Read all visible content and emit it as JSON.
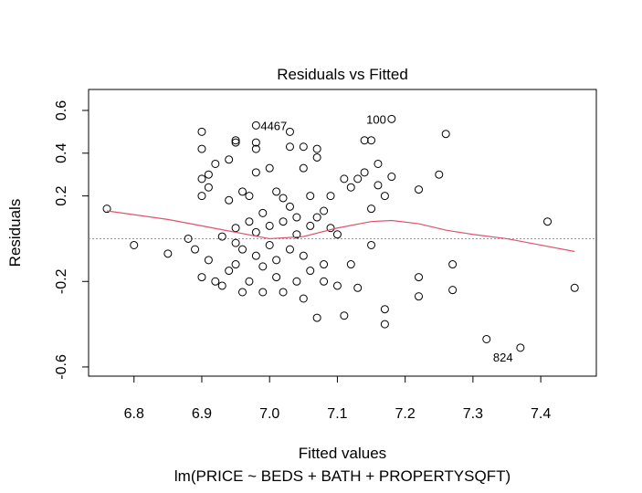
{
  "chart_data": {
    "type": "scatter",
    "title": "Residuals vs Fitted",
    "x_label": "Fitted values",
    "subtitle": "lm(PRICE ~ BEDS + BATH + PROPERTYSQFT)",
    "y_label": "Residuals",
    "xlim": [
      6.733,
      7.482
    ],
    "ylim": [
      -0.643,
      0.698
    ],
    "xticks": [
      6.8,
      6.9,
      {
        "value": 7,
        "label": "7.0"
      },
      7.1,
      7.2,
      7.3,
      7.4
    ],
    "yticks": [
      -0.6,
      -0.2,
      0.2,
      0.4,
      0.6
    ],
    "reference_line": 0,
    "series": [
      {
        "color": "#000000",
        "x": [
          6.98,
          7.18,
          7.37,
          6.76,
          6.8,
          6.85,
          6.88,
          6.89,
          6.9,
          6.9,
          6.9,
          6.9,
          6.9,
          6.91,
          6.91,
          6.91,
          6.92,
          6.92,
          6.93,
          6.93,
          6.94,
          6.94,
          6.94,
          6.95,
          6.95,
          6.95,
          6.95,
          6.95,
          6.96,
          6.96,
          6.96,
          6.97,
          6.97,
          6.97,
          6.98,
          6.98,
          6.98,
          6.98,
          6.98,
          6.99,
          6.99,
          6.99,
          7.0,
          7.0,
          7.0,
          7.01,
          7.01,
          7.01,
          7.02,
          7.02,
          7.02,
          7.03,
          7.03,
          7.03,
          7.03,
          7.04,
          7.04,
          7.04,
          7.05,
          7.05,
          7.05,
          7.05,
          7.06,
          7.06,
          7.06,
          7.07,
          7.07,
          7.07,
          7.07,
          7.08,
          7.08,
          7.08,
          7.09,
          7.09,
          7.1,
          7.1,
          7.11,
          7.11,
          7.12,
          7.12,
          7.13,
          7.13,
          7.14,
          7.14,
          7.15,
          7.15,
          7.15,
          7.16,
          7.16,
          7.17,
          7.17,
          7.17,
          7.18,
          7.22,
          7.22,
          7.22,
          7.25,
          7.26,
          7.27,
          7.27,
          7.32,
          7.41,
          7.45
        ],
        "values": [
          0.53,
          0.56,
          -0.51,
          0.14,
          -0.03,
          -0.07,
          0.0,
          -0.05,
          0.5,
          0.42,
          0.28,
          0.2,
          -0.18,
          0.3,
          0.24,
          -0.1,
          0.35,
          -0.2,
          -0.22,
          0.01,
          -0.15,
          0.18,
          0.37,
          0.46,
          0.45,
          -0.02,
          0.05,
          -0.12,
          -0.25,
          0.22,
          -0.05,
          0.08,
          -0.2,
          0.2,
          0.45,
          0.42,
          0.31,
          0.03,
          -0.08,
          -0.13,
          0.12,
          -0.25,
          0.33,
          -0.03,
          0.06,
          0.22,
          -0.1,
          -0.18,
          0.19,
          0.08,
          -0.25,
          0.5,
          0.43,
          0.15,
          -0.05,
          -0.2,
          0.02,
          0.1,
          0.43,
          0.33,
          -0.28,
          -0.08,
          0.2,
          0.06,
          -0.15,
          0.42,
          0.38,
          -0.37,
          0.1,
          0.13,
          -0.12,
          -0.2,
          0.05,
          0.2,
          -0.22,
          0.02,
          0.28,
          -0.36,
          0.24,
          -0.12,
          -0.23,
          0.28,
          0.46,
          0.31,
          0.46,
          0.14,
          -0.03,
          0.35,
          0.25,
          0.2,
          -0.33,
          -0.4,
          0.29,
          0.23,
          -0.18,
          -0.27,
          0.3,
          0.49,
          -0.12,
          -0.24,
          -0.47,
          0.08,
          -0.23
        ]
      },
      {
        "type": "line",
        "color": "#df536b",
        "x": [
          6.76,
          6.85,
          6.9,
          6.95,
          7.0,
          7.05,
          7.1,
          7.15,
          7.18,
          7.22,
          7.26,
          7.3,
          7.35,
          7.4,
          7.45
        ],
        "values": [
          0.13,
          0.09,
          0.06,
          0.03,
          0.0,
          0.01,
          0.05,
          0.08,
          0.085,
          0.07,
          0.04,
          0.02,
          0.0,
          -0.03,
          -0.06
        ]
      }
    ],
    "annotations": [
      {
        "text": "4467",
        "point": 0
      },
      {
        "text": "100",
        "point": 1
      },
      {
        "text": "824",
        "point": 2
      }
    ]
  }
}
